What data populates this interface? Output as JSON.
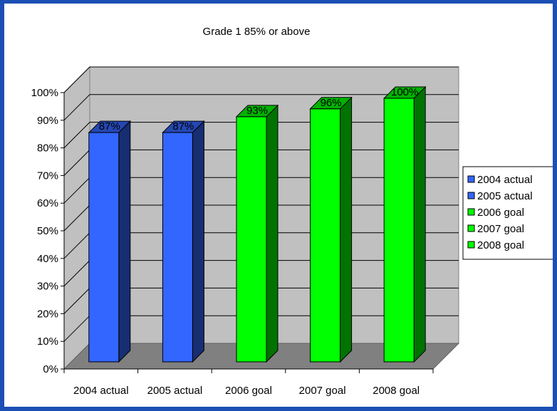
{
  "chart_data": {
    "type": "bar",
    "title": "Grade 1 85% or above",
    "categories": [
      "2004 actual",
      "2005 actual",
      "2006 goal",
      "2007 goal",
      "2008 goal"
    ],
    "values": [
      87,
      87,
      93,
      96,
      100
    ],
    "data_labels": [
      "87%",
      "87%",
      "93%",
      "96%",
      "100%"
    ],
    "colors": [
      "#3366ff",
      "#3366ff",
      "#00ff00",
      "#00ff00",
      "#00ff00"
    ],
    "yticks": [
      "0%",
      "10%",
      "20%",
      "30%",
      "40%",
      "50%",
      "60%",
      "70%",
      "80%",
      "90%",
      "100%"
    ],
    "ylim": [
      0,
      100
    ],
    "grid": true,
    "style": "3d-column",
    "legend": {
      "position": "right",
      "entries": [
        {
          "label": "2004 actual",
          "color": "#3366ff"
        },
        {
          "label": "2005 actual",
          "color": "#3366ff"
        },
        {
          "label": "2006 goal",
          "color": "#00ff00"
        },
        {
          "label": "2007 goal",
          "color": "#00ff00"
        },
        {
          "label": "2008 goal",
          "color": "#00ff00"
        }
      ]
    }
  }
}
